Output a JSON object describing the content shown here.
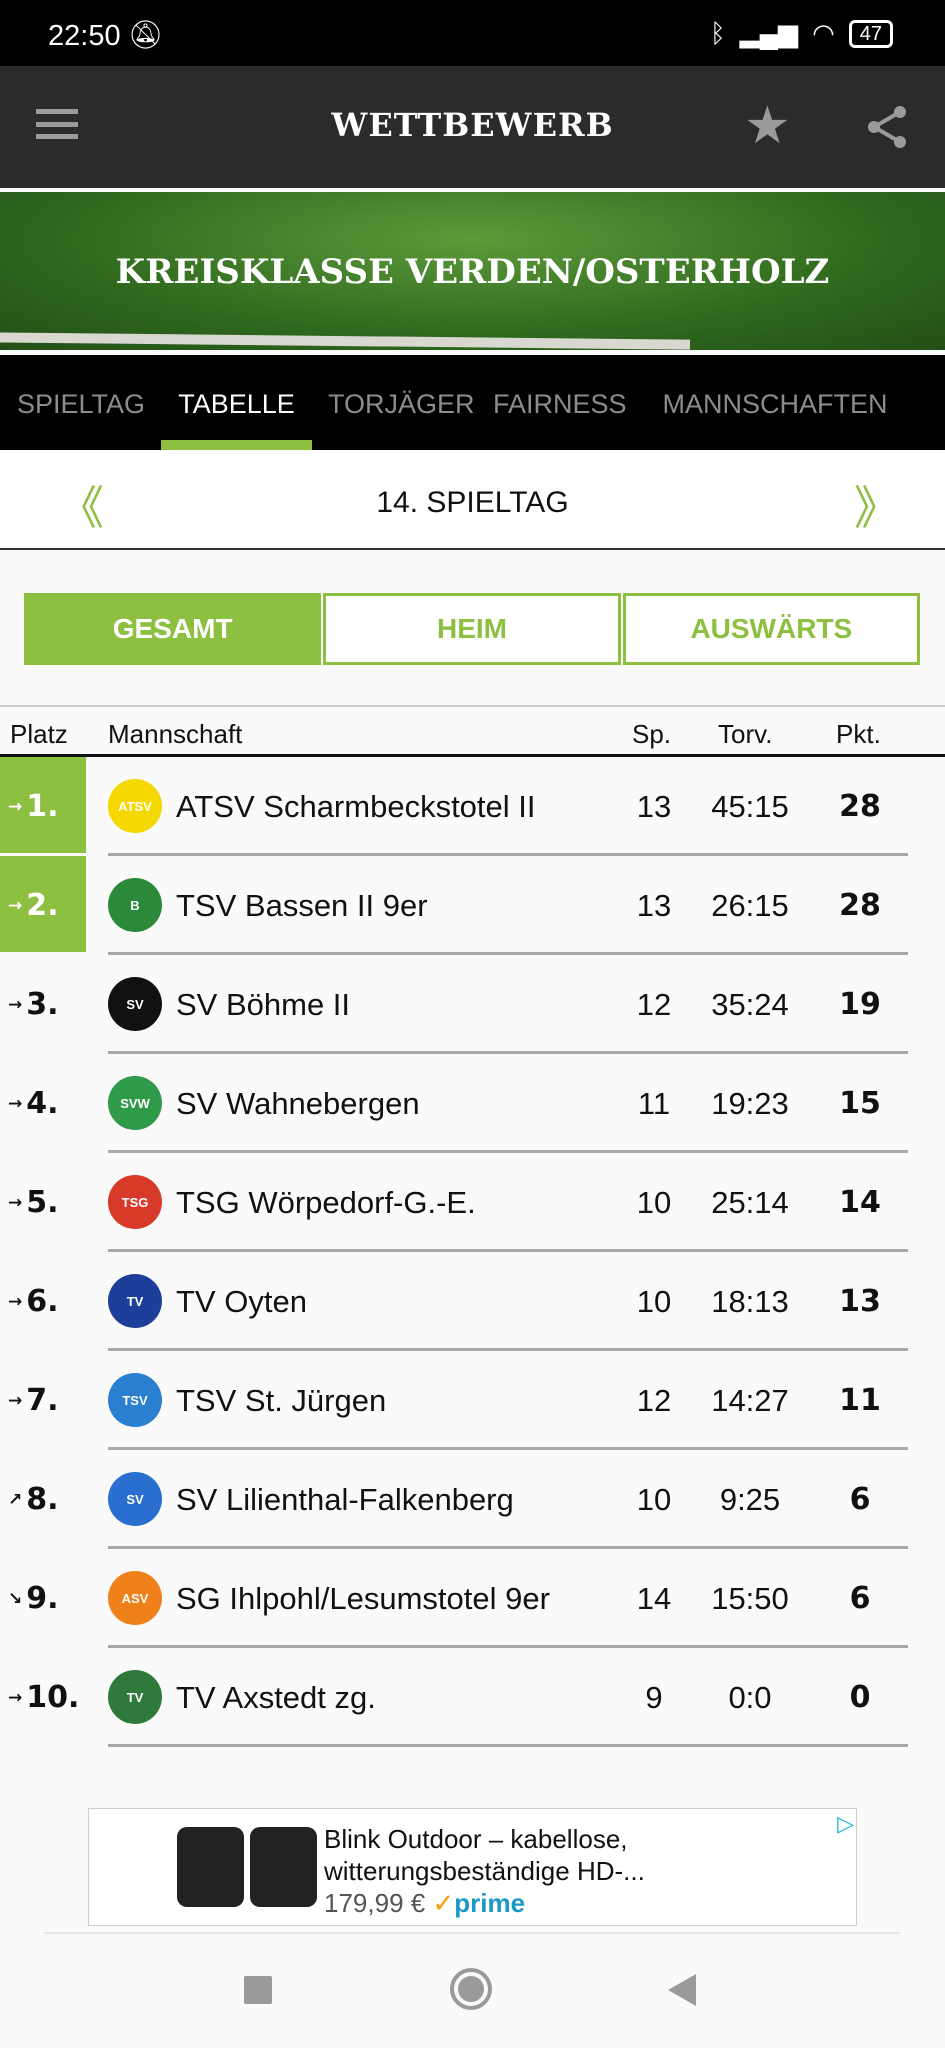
{
  "status_bar": {
    "time": "22:50",
    "battery": "47"
  },
  "app_bar": {
    "title": "WETTBEWERB"
  },
  "banner": {
    "title": "KREISKLASSE VERDEN/OSTERHOLZ"
  },
  "tabs": [
    {
      "label": "SPIELTAG"
    },
    {
      "label": "TABELLE",
      "active": true
    },
    {
      "label": "TORJÄGER"
    },
    {
      "label": "FAIRNESS"
    },
    {
      "label": "MANNSCHAFTEN"
    }
  ],
  "round": {
    "prev": "《",
    "label": "14. SPIELTAG",
    "next": "》"
  },
  "segments": [
    {
      "label": "GESAMT",
      "active": true
    },
    {
      "label": "HEIM"
    },
    {
      "label": "AUSWÄRTS"
    }
  ],
  "table": {
    "headers": {
      "platz": "Platz",
      "mannschaft": "Mannschaft",
      "sp": "Sp.",
      "torv": "Torv.",
      "pkt": "Pkt."
    },
    "rows": [
      {
        "rank": "1.",
        "trend": "→",
        "team": "ATSV Scharmbeckstotel II",
        "sp": "13",
        "torv": "45:15",
        "pkt": "28",
        "promotion": true,
        "logo_color": "#f5d800",
        "logo_text": "ATSV"
      },
      {
        "rank": "2.",
        "trend": "→",
        "team": "TSV Bassen II 9er",
        "sp": "13",
        "torv": "26:15",
        "pkt": "28",
        "promotion": true,
        "logo_color": "#2a8a3a",
        "logo_text": "B"
      },
      {
        "rank": "3.",
        "trend": "→",
        "team": "SV Böhme II",
        "sp": "12",
        "torv": "35:24",
        "pkt": "19",
        "logo_color": "#111111",
        "logo_text": "SV"
      },
      {
        "rank": "4.",
        "trend": "→",
        "team": "SV Wahnebergen",
        "sp": "11",
        "torv": "19:23",
        "pkt": "15",
        "logo_color": "#2e9a4a",
        "logo_text": "SVW"
      },
      {
        "rank": "5.",
        "trend": "→",
        "team": "TSG Wörpedorf-G.-E.",
        "sp": "10",
        "torv": "25:14",
        "pkt": "14",
        "logo_color": "#d83a2a",
        "logo_text": "TSG"
      },
      {
        "rank": "6.",
        "trend": "→",
        "team": "TV Oyten",
        "sp": "10",
        "torv": "18:13",
        "pkt": "13",
        "logo_color": "#1d3f9a",
        "logo_text": "TV"
      },
      {
        "rank": "7.",
        "trend": "→",
        "team": "TSV St. Jürgen",
        "sp": "12",
        "torv": "14:27",
        "pkt": "11",
        "logo_color": "#2a7fd0",
        "logo_text": "TSV"
      },
      {
        "rank": "8.",
        "trend": "↗",
        "team": "SV Lilienthal-Falkenberg",
        "sp": "10",
        "torv": "9:25",
        "pkt": "6",
        "logo_color": "#2a6fd0",
        "logo_text": "SV"
      },
      {
        "rank": "9.",
        "trend": "↘",
        "team": "SG Ihlpohl/Lesumstotel 9er",
        "sp": "14",
        "torv": "15:50",
        "pkt": "6",
        "logo_color": "#f0801a",
        "logo_text": "ASV"
      },
      {
        "rank": "10.",
        "trend": "→",
        "team": "TV Axstedt zg.",
        "sp": "9",
        "torv": "0:0",
        "pkt": "0",
        "logo_color": "#2f7a3a",
        "logo_text": "TV"
      }
    ]
  },
  "ad": {
    "line1": "Blink Outdoor – kabellose,",
    "line2": "witterungsbeständige HD-...",
    "price": "179,99 €",
    "badge": "prime"
  },
  "colors": {
    "accent": "#8dc041",
    "appbar": "#2b2b2b"
  }
}
